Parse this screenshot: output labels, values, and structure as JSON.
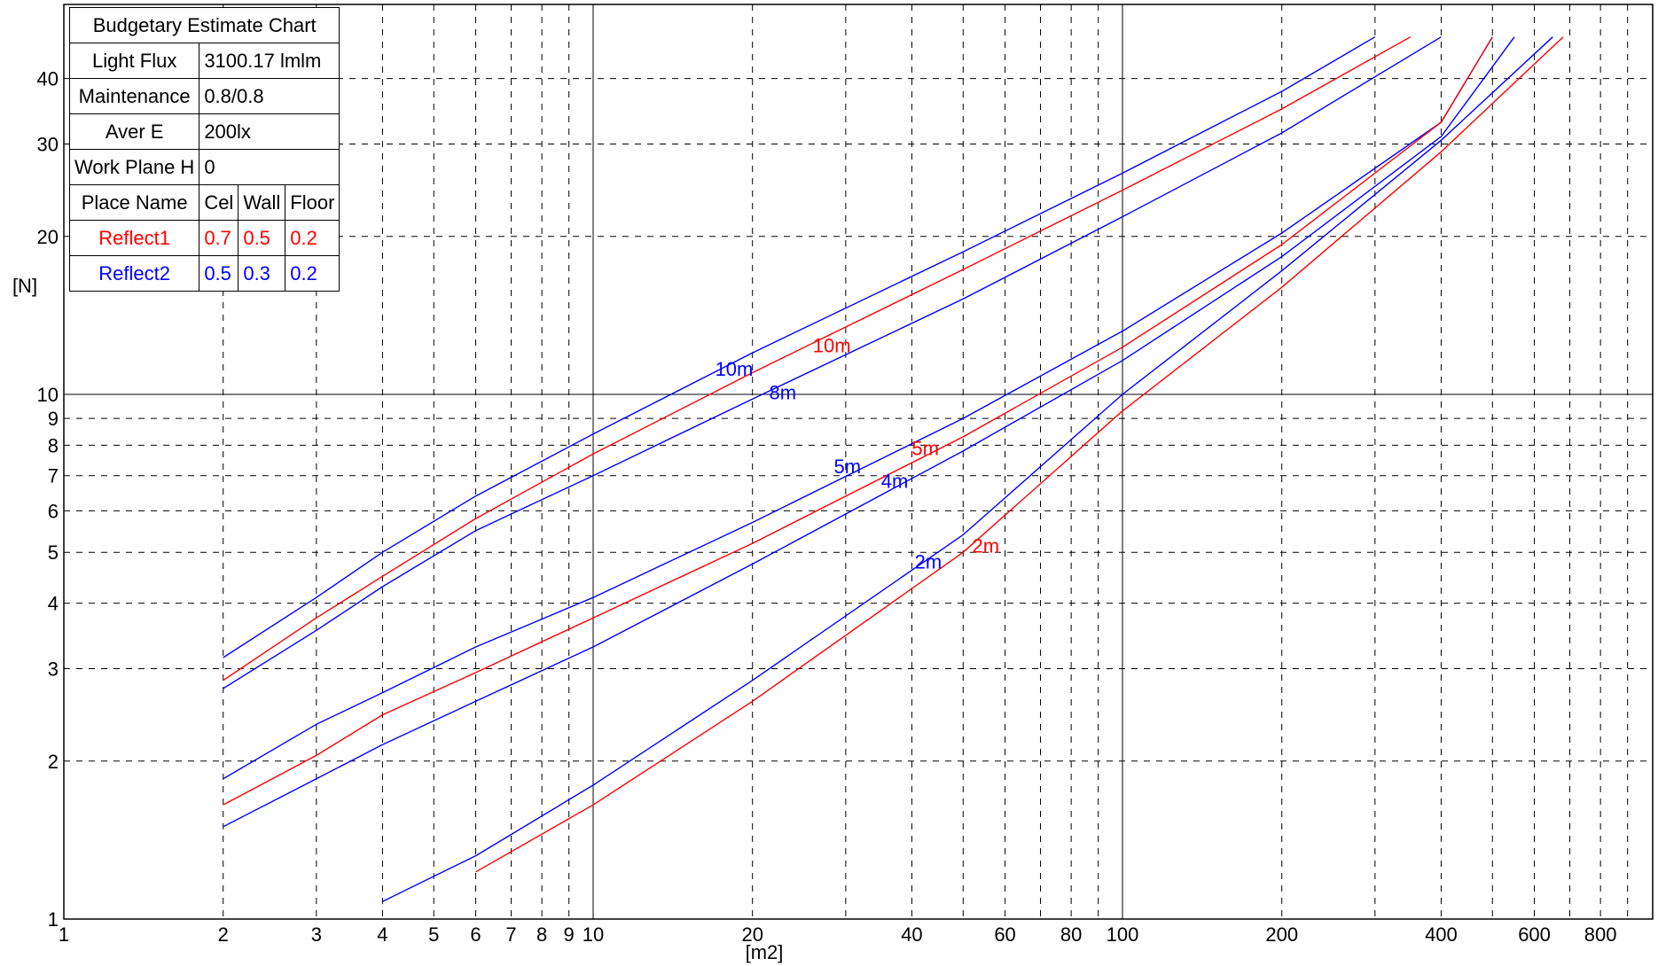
{
  "table": {
    "title": "Budgetary Estimate Chart",
    "rows": [
      {
        "label": "Light Flux",
        "value": "3100.17 lmlm"
      },
      {
        "label": "Maintenance",
        "value": "0.8/0.8"
      },
      {
        "label": "Aver E",
        "value": "200lx"
      },
      {
        "label": "Work Plane H",
        "value": "0"
      }
    ],
    "header": {
      "name": "Place Name",
      "cel": "Cel",
      "wall": "Wall",
      "floor": "Floor"
    },
    "reflect1": {
      "name": "Reflect1",
      "cel": "0.7",
      "wall": "0.5",
      "floor": "0.2",
      "color": "#ff0000"
    },
    "reflect2": {
      "name": "Reflect2",
      "cel": "0.5",
      "wall": "0.3",
      "floor": "0.2",
      "color": "#0000ff"
    }
  },
  "chart_data": {
    "type": "line",
    "title": "Budgetary Estimate Chart",
    "xlabel": "[m2]",
    "ylabel": "[N]",
    "xscale": "log",
    "yscale": "log",
    "xlim": [
      1,
      900
    ],
    "ylim": [
      1,
      48
    ],
    "grid": true,
    "x_ticks": [
      1,
      2,
      3,
      4,
      5,
      6,
      7,
      8,
      9,
      10,
      20,
      40,
      60,
      80,
      100,
      200,
      400,
      600,
      800
    ],
    "y_ticks": [
      1,
      2,
      3,
      4,
      5,
      6,
      7,
      8,
      9,
      10,
      20,
      30,
      40
    ],
    "series": [
      {
        "name": "10m",
        "group": "Reflect2",
        "color": "#0000ff",
        "label_at": [
          17,
          11.2
        ],
        "points": [
          [
            2,
            3.15
          ],
          [
            3,
            4.1
          ],
          [
            4,
            5.0
          ],
          [
            6,
            6.4
          ],
          [
            10,
            8.4
          ],
          [
            20,
            12.0
          ],
          [
            50,
            18.7
          ],
          [
            100,
            26.4
          ],
          [
            200,
            37.8
          ],
          [
            300,
            48
          ]
        ]
      },
      {
        "name": "10m",
        "group": "Reflect1",
        "color": "#ff0000",
        "label_at": [
          26,
          12.4
        ],
        "points": [
          [
            2,
            2.85
          ],
          [
            3,
            3.75
          ],
          [
            4,
            4.5
          ],
          [
            6,
            5.8
          ],
          [
            10,
            7.7
          ],
          [
            20,
            11.0
          ],
          [
            50,
            17.3
          ],
          [
            100,
            24.5
          ],
          [
            200,
            35.0
          ],
          [
            350,
            48
          ]
        ]
      },
      {
        "name": "8m",
        "group": "Reflect2",
        "color": "#0000ff",
        "label_at": [
          21.5,
          10.1
        ],
        "points": [
          [
            2,
            2.75
          ],
          [
            3,
            3.55
          ],
          [
            4,
            4.3
          ],
          [
            6,
            5.5
          ],
          [
            10,
            7.0
          ],
          [
            20,
            9.8
          ],
          [
            50,
            15.2
          ],
          [
            100,
            21.8
          ],
          [
            200,
            31.5
          ],
          [
            400,
            48
          ]
        ]
      },
      {
        "name": "5m",
        "group": "Reflect2",
        "color": "#0000ff",
        "label_at": [
          28.5,
          7.3
        ],
        "points": [
          [
            2,
            1.85
          ],
          [
            3,
            2.35
          ],
          [
            4,
            2.7
          ],
          [
            6,
            3.3
          ],
          [
            10,
            4.1
          ],
          [
            20,
            5.7
          ],
          [
            50,
            9.0
          ],
          [
            100,
            13.2
          ],
          [
            200,
            20.3
          ],
          [
            400,
            33
          ],
          [
            500,
            48
          ]
        ]
      },
      {
        "name": "5m",
        "group": "Reflect1",
        "color": "#ff0000",
        "label_at": [
          40,
          7.9
        ],
        "points": [
          [
            2,
            1.65
          ],
          [
            3,
            2.05
          ],
          [
            4,
            2.45
          ],
          [
            6,
            2.95
          ],
          [
            10,
            3.75
          ],
          [
            20,
            5.2
          ],
          [
            50,
            8.3
          ],
          [
            100,
            12.3
          ],
          [
            200,
            19.3
          ],
          [
            400,
            33
          ],
          [
            500,
            48
          ]
        ]
      },
      {
        "name": "4m",
        "group": "Reflect2",
        "color": "#0000ff",
        "label_at": [
          35,
          6.85
        ],
        "points": [
          [
            2,
            1.5
          ],
          [
            3,
            1.85
          ],
          [
            4,
            2.15
          ],
          [
            6,
            2.6
          ],
          [
            10,
            3.3
          ],
          [
            20,
            4.75
          ],
          [
            50,
            7.8
          ],
          [
            100,
            11.6
          ],
          [
            200,
            18.3
          ],
          [
            400,
            31
          ],
          [
            550,
            48
          ]
        ]
      },
      {
        "name": "2m",
        "group": "Reflect2",
        "color": "#0000ff",
        "label_at": [
          40.5,
          4.8
        ],
        "points": [
          [
            4,
            1.08
          ],
          [
            6,
            1.32
          ],
          [
            10,
            1.8
          ],
          [
            20,
            2.85
          ],
          [
            50,
            5.4
          ],
          [
            100,
            10.0
          ],
          [
            200,
            17.2
          ],
          [
            400,
            30.5
          ],
          [
            650,
            48
          ]
        ]
      },
      {
        "name": "2m",
        "group": "Reflect1",
        "color": "#ff0000",
        "label_at": [
          52,
          5.15
        ],
        "points": [
          [
            6,
            1.23
          ],
          [
            10,
            1.65
          ],
          [
            20,
            2.6
          ],
          [
            50,
            5.0
          ],
          [
            100,
            9.3
          ],
          [
            200,
            16.0
          ],
          [
            400,
            29.0
          ],
          [
            680,
            48
          ]
        ]
      }
    ]
  }
}
